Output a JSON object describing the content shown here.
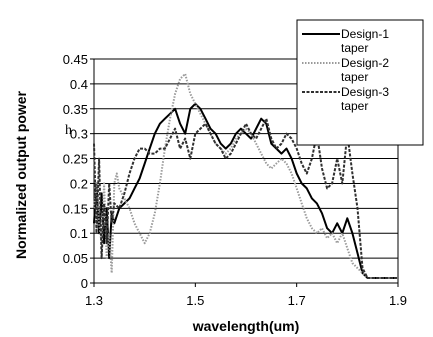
{
  "chart_data": {
    "type": "line",
    "title": "",
    "xlabel": "wavelength(um)",
    "ylabel": "Normalized output power",
    "xlim": [
      1.3,
      1.9
    ],
    "ylim": [
      0,
      0.45
    ],
    "x_ticks": [
      "1.3",
      "1.5",
      "1.7",
      "1.9"
    ],
    "y_ticks": [
      "0",
      "0.05",
      "0.1",
      "0.15",
      "0.2",
      "0.25",
      "0.3",
      "0.35",
      "0.4",
      "0.45"
    ],
    "grid": "horizontal",
    "legend": "top-right",
    "stray_text": "h",
    "series": [
      {
        "name": "Design-1 taper",
        "line_style": "solid",
        "color": "#000000",
        "x": [
          1.3,
          1.305,
          1.31,
          1.315,
          1.32,
          1.325,
          1.33,
          1.335,
          1.34,
          1.35,
          1.36,
          1.37,
          1.38,
          1.39,
          1.4,
          1.41,
          1.42,
          1.43,
          1.44,
          1.45,
          1.46,
          1.47,
          1.48,
          1.49,
          1.5,
          1.51,
          1.52,
          1.53,
          1.54,
          1.55,
          1.56,
          1.57,
          1.58,
          1.59,
          1.6,
          1.61,
          1.62,
          1.63,
          1.64,
          1.65,
          1.66,
          1.67,
          1.68,
          1.69,
          1.7,
          1.71,
          1.72,
          1.73,
          1.74,
          1.75,
          1.76,
          1.77,
          1.78,
          1.79,
          1.8,
          1.81,
          1.82,
          1.83,
          1.84,
          1.86,
          1.88,
          1.9
        ],
        "y": [
          0.12,
          0.2,
          0.1,
          0.18,
          0.08,
          0.15,
          0.05,
          0.14,
          0.12,
          0.15,
          0.16,
          0.17,
          0.19,
          0.21,
          0.24,
          0.27,
          0.3,
          0.32,
          0.33,
          0.34,
          0.35,
          0.32,
          0.3,
          0.35,
          0.36,
          0.35,
          0.33,
          0.31,
          0.3,
          0.28,
          0.27,
          0.28,
          0.3,
          0.31,
          0.3,
          0.29,
          0.31,
          0.33,
          0.32,
          0.28,
          0.27,
          0.26,
          0.27,
          0.25,
          0.22,
          0.2,
          0.19,
          0.17,
          0.16,
          0.14,
          0.11,
          0.1,
          0.12,
          0.1,
          0.13,
          0.1,
          0.06,
          0.02,
          0.01,
          0.01,
          0.01,
          0.01
        ]
      },
      {
        "name": "Design-2 taper",
        "line_style": "dotted",
        "color": "#9a9a9a",
        "x": [
          1.3,
          1.305,
          1.31,
          1.315,
          1.32,
          1.325,
          1.33,
          1.335,
          1.34,
          1.345,
          1.35,
          1.36,
          1.37,
          1.38,
          1.39,
          1.4,
          1.41,
          1.42,
          1.43,
          1.44,
          1.45,
          1.46,
          1.47,
          1.48,
          1.49,
          1.5,
          1.51,
          1.52,
          1.53,
          1.54,
          1.55,
          1.56,
          1.57,
          1.58,
          1.59,
          1.6,
          1.61,
          1.62,
          1.63,
          1.64,
          1.65,
          1.66,
          1.67,
          1.68,
          1.69,
          1.7,
          1.71,
          1.72,
          1.73,
          1.74,
          1.75,
          1.76,
          1.77,
          1.78,
          1.79,
          1.8,
          1.81,
          1.82,
          1.84,
          1.86,
          1.88,
          1.9
        ],
        "y": [
          0.15,
          0.2,
          0.12,
          0.08,
          0.2,
          0.05,
          0.1,
          0.02,
          0.2,
          0.22,
          0.19,
          0.17,
          0.15,
          0.12,
          0.1,
          0.08,
          0.1,
          0.14,
          0.2,
          0.27,
          0.33,
          0.38,
          0.41,
          0.42,
          0.38,
          0.36,
          0.34,
          0.32,
          0.3,
          0.28,
          0.27,
          0.26,
          0.27,
          0.29,
          0.3,
          0.31,
          0.3,
          0.28,
          0.26,
          0.24,
          0.23,
          0.24,
          0.25,
          0.24,
          0.22,
          0.19,
          0.16,
          0.13,
          0.11,
          0.1,
          0.11,
          0.09,
          0.1,
          0.08,
          0.1,
          0.07,
          0.04,
          0.03,
          0.01,
          0.01,
          0.01,
          0.01
        ]
      },
      {
        "name": "Design-3 taper",
        "line_style": "dashed",
        "color": "#303030",
        "x": [
          1.3,
          1.305,
          1.31,
          1.315,
          1.32,
          1.325,
          1.33,
          1.335,
          1.34,
          1.35,
          1.36,
          1.37,
          1.38,
          1.39,
          1.4,
          1.41,
          1.42,
          1.43,
          1.44,
          1.45,
          1.46,
          1.47,
          1.48,
          1.49,
          1.5,
          1.51,
          1.52,
          1.53,
          1.54,
          1.55,
          1.56,
          1.57,
          1.58,
          1.59,
          1.6,
          1.61,
          1.62,
          1.63,
          1.64,
          1.65,
          1.66,
          1.67,
          1.68,
          1.69,
          1.7,
          1.71,
          1.72,
          1.73,
          1.74,
          1.75,
          1.76,
          1.77,
          1.78,
          1.79,
          1.8,
          1.81,
          1.82,
          1.83,
          1.84,
          1.86,
          1.88,
          1.9
        ],
        "y": [
          0.28,
          0.1,
          0.25,
          0.05,
          0.16,
          0.08,
          0.2,
          0.12,
          0.16,
          0.15,
          0.18,
          0.22,
          0.25,
          0.27,
          0.27,
          0.26,
          0.26,
          0.27,
          0.27,
          0.29,
          0.31,
          0.27,
          0.29,
          0.25,
          0.3,
          0.31,
          0.32,
          0.3,
          0.28,
          0.27,
          0.25,
          0.26,
          0.28,
          0.3,
          0.32,
          0.3,
          0.29,
          0.31,
          0.33,
          0.29,
          0.27,
          0.28,
          0.3,
          0.29,
          0.27,
          0.24,
          0.22,
          0.25,
          0.3,
          0.23,
          0.19,
          0.2,
          0.25,
          0.2,
          0.3,
          0.22,
          0.15,
          0.03,
          0.01,
          0.01,
          0.01,
          0.01
        ]
      }
    ]
  }
}
